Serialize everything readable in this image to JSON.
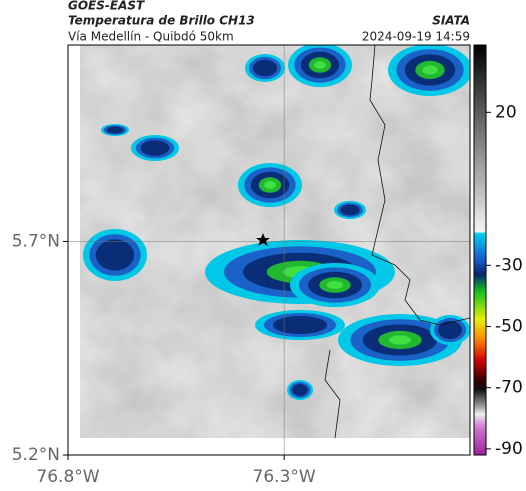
{
  "header": {
    "satellite": "GOES-EAST",
    "product": "Temperatura de Brillo CH13",
    "route": "Vía Medellín - Quibdó 50km",
    "source": "SIATA",
    "datetime": "2024-09-19 14:59"
  },
  "map": {
    "lat_range": [
      5.2,
      6.16
    ],
    "lon_range": [
      -76.8,
      -75.87
    ],
    "lat_ticks": [
      {
        "value": 5.7,
        "label": "5.7°N"
      },
      {
        "value": 5.2,
        "label": "5.2°N"
      }
    ],
    "lon_ticks": [
      {
        "value": -76.8,
        "label": "76.8°W"
      },
      {
        "value": -76.3,
        "label": "76.3°W"
      }
    ]
  },
  "colorbar": {
    "range": [
      -92,
      42
    ],
    "ticks": [
      20,
      -30,
      -50,
      -70,
      -90
    ]
  }
}
